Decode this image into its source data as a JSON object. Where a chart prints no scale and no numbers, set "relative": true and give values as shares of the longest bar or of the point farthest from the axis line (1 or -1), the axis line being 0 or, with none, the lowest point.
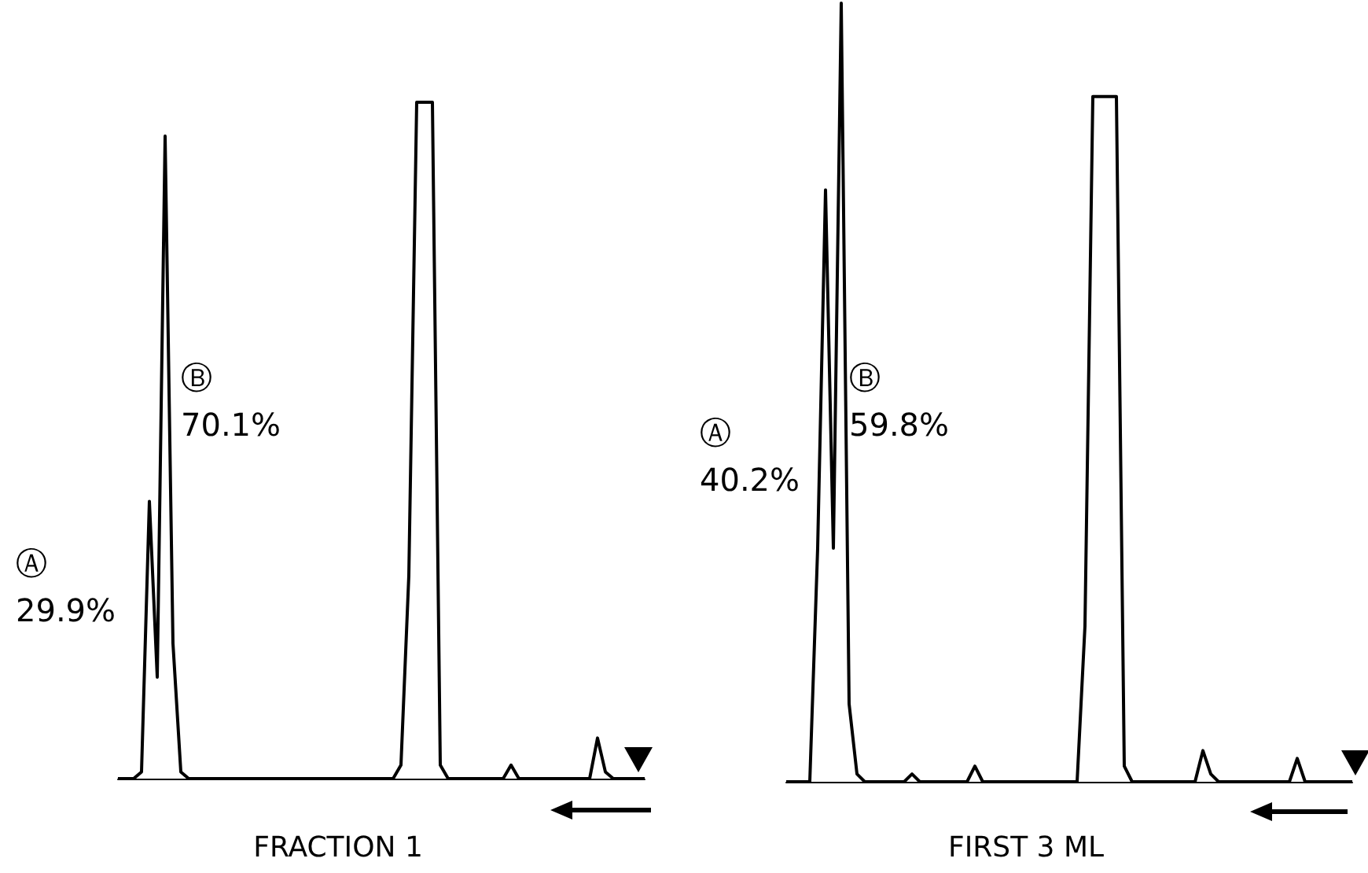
{
  "chart_data": [
    {
      "type": "line",
      "relative": true,
      "title": "FRACTION 1",
      "annotations": [
        "Ⓐ\n29.9%",
        "Ⓑ\n70.1%"
      ],
      "categories": [
        null,
        null,
        null,
        null,
        null,
        null,
        null,
        null,
        null,
        null,
        null,
        null,
        null,
        null,
        null,
        null,
        null,
        null,
        null,
        null,
        null,
        null,
        null,
        null,
        null,
        null,
        null,
        null,
        null,
        null,
        null,
        null,
        null,
        null,
        null,
        null,
        null,
        null,
        null,
        null,
        null,
        null,
        null,
        null,
        null,
        null,
        null,
        null,
        null,
        null,
        null,
        null,
        null,
        null,
        null,
        null,
        null,
        null,
        null,
        null,
        null,
        null,
        null,
        null,
        null,
        null,
        null,
        null
      ],
      "series": [
        {
          "color": "#000000",
          "values": [
            0,
            0,
            0,
            0.01,
            0.41,
            0.15,
            0.95,
            0.2,
            0.01,
            0,
            0,
            0,
            0,
            0,
            0,
            0,
            0,
            0,
            0,
            0,
            0,
            0,
            0,
            0,
            0,
            0,
            0,
            0,
            0,
            0,
            0,
            0,
            0,
            0,
            0,
            0,
            0.02,
            0.3,
            1,
            1,
            1,
            0.02,
            0,
            0,
            0,
            0,
            0,
            0,
            0,
            0,
            0.02,
            0,
            0,
            0,
            0,
            0,
            0,
            0,
            0,
            0,
            0,
            0.06,
            0.01,
            0,
            0,
            0,
            0,
            0
          ]
        }
      ]
    },
    {
      "type": "line",
      "relative": true,
      "title": "FIRST 3 ML",
      "annotations": [
        "Ⓐ\n40.2%",
        "Ⓑ\n59.8%"
      ],
      "categories": [
        null,
        null,
        null,
        null,
        null,
        null,
        null,
        null,
        null,
        null,
        null,
        null,
        null,
        null,
        null,
        null,
        null,
        null,
        null,
        null,
        null,
        null,
        null,
        null,
        null,
        null,
        null,
        null,
        null,
        null,
        null,
        null,
        null,
        null,
        null,
        null,
        null,
        null,
        null,
        null,
        null,
        null,
        null,
        null,
        null,
        null,
        null,
        null,
        null,
        null,
        null,
        null,
        null,
        null,
        null,
        null,
        null,
        null,
        null,
        null,
        null,
        null,
        null,
        null,
        null,
        null,
        null,
        null,
        null,
        null,
        null,
        null,
        null
      ],
      "series": [
        {
          "color": "#000000",
          "values": [
            0,
            0,
            0,
            0,
            0.3,
            0.76,
            0.3,
            1,
            0.1,
            0.01,
            0,
            0,
            0,
            0,
            0,
            0,
            0.01,
            0,
            0,
            0,
            0,
            0,
            0,
            0,
            0.02,
            0,
            0,
            0,
            0,
            0,
            0,
            0,
            0,
            0,
            0,
            0,
            0,
            0,
            0.2,
            0.88,
            0.88,
            0.88,
            0.88,
            0.02,
            0,
            0,
            0,
            0,
            0,
            0,
            0,
            0,
            0,
            0.04,
            0.01,
            0,
            0,
            0,
            0,
            0,
            0,
            0,
            0,
            0,
            0,
            0.03,
            0,
            0,
            0,
            0,
            0,
            0,
            0
          ]
        }
      ]
    }
  ]
}
